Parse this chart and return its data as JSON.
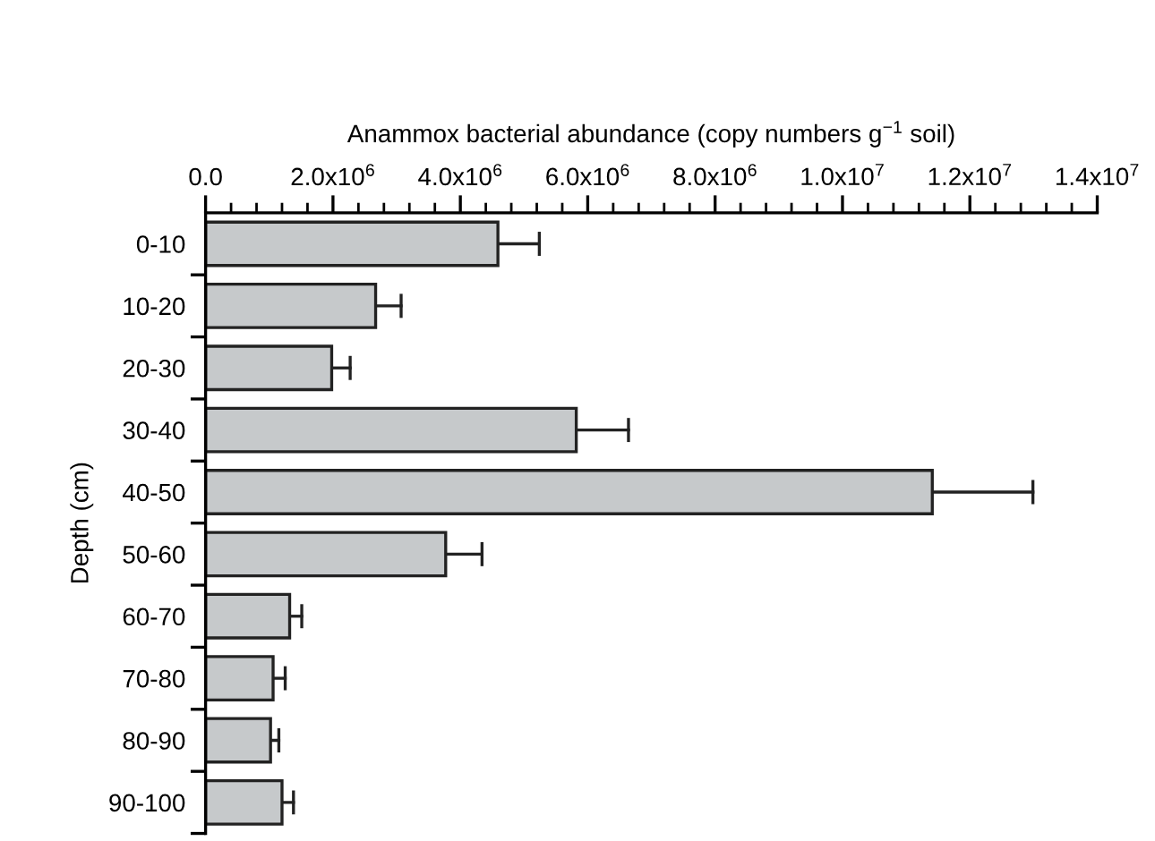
{
  "chart_data": {
    "type": "bar",
    "orientation": "horizontal",
    "xlabel": "Anammox bacterial abundance (copy numbers g$^{−1}$ soil)",
    "ylabel": "Depth (cm)",
    "categories": [
      "0-10",
      "10-20",
      "20-30",
      "30-40",
      "40-50",
      "50-60",
      "60-70",
      "70-80",
      "80-90",
      "90-100"
    ],
    "values": [
      4590000,
      2670000,
      1980000,
      5820000,
      11410000,
      3770000,
      1320000,
      1060000,
      1020000,
      1200000
    ],
    "errors": [
      [
        4590000,
        5240000
      ],
      [
        2670000,
        3070000
      ],
      [
        1980000,
        2270000
      ],
      [
        5820000,
        6640000
      ],
      [
        11410000,
        12990000
      ],
      [
        3770000,
        4340000
      ],
      [
        1320000,
        1510000
      ],
      [
        1060000,
        1250000
      ],
      [
        1020000,
        1150000
      ],
      [
        1200000,
        1380000
      ]
    ],
    "color": "#c6c9cb",
    "xlim": [
      0,
      14000000
    ],
    "xticks": [
      {
        "value": 0,
        "label": "0.0"
      },
      {
        "value": 2000000,
        "label": "2.0x10$^{6}$"
      },
      {
        "value": 4000000,
        "label": "4.0x10$^{6}$"
      },
      {
        "value": 6000000,
        "label": "6.0x10$^{6}$"
      },
      {
        "value": 8000000,
        "label": "8.0x10$^{6}$"
      },
      {
        "value": 10000000,
        "label": "1.0x10$^{7}$"
      },
      {
        "value": 12000000,
        "label": "1.2x10$^{7}$"
      },
      {
        "value": 14000000,
        "label": "1.4x10$^{7}$"
      }
    ],
    "grid": false,
    "legend": false
  }
}
